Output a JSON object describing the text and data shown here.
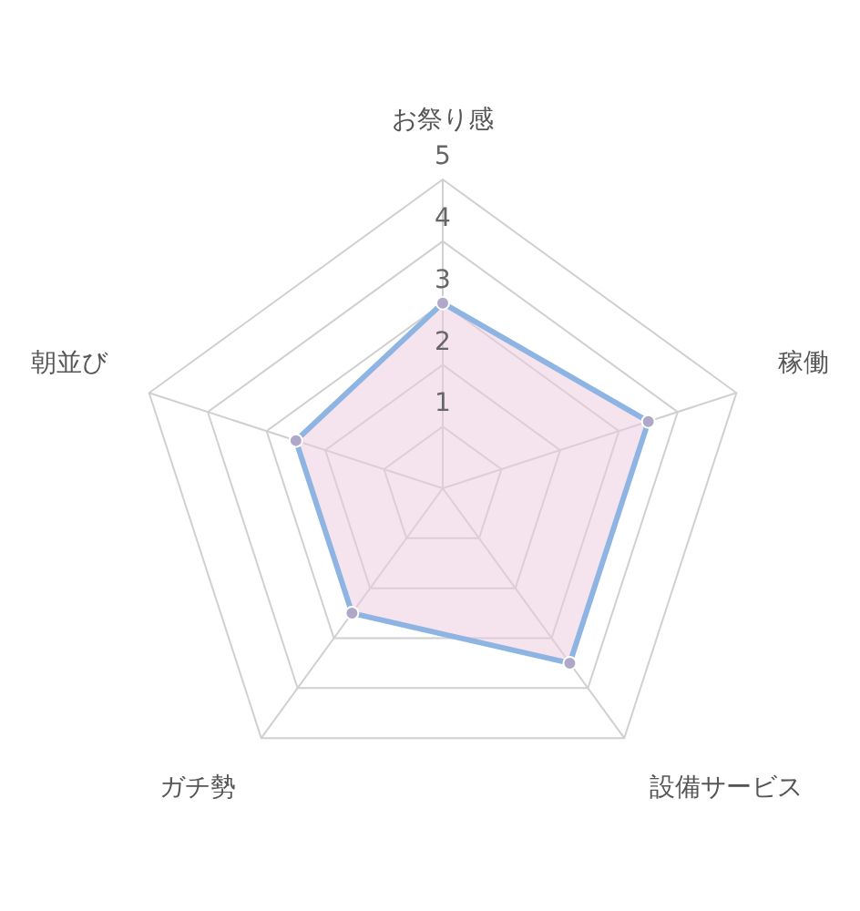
{
  "chart_data": {
    "type": "radar",
    "categories": [
      "お祭り感",
      "稼働",
      "設備サービス",
      "ガチ勢",
      "朝並び"
    ],
    "series": [
      {
        "color": "#8db4e2",
        "values": [
          3,
          3.5,
          3.5,
          2.5,
          2.5
        ]
      }
    ],
    "ylim": [
      0,
      5
    ],
    "yticks": [
      1,
      2,
      3,
      4,
      5
    ],
    "grid": true,
    "legend": false,
    "marker": "circle"
  }
}
